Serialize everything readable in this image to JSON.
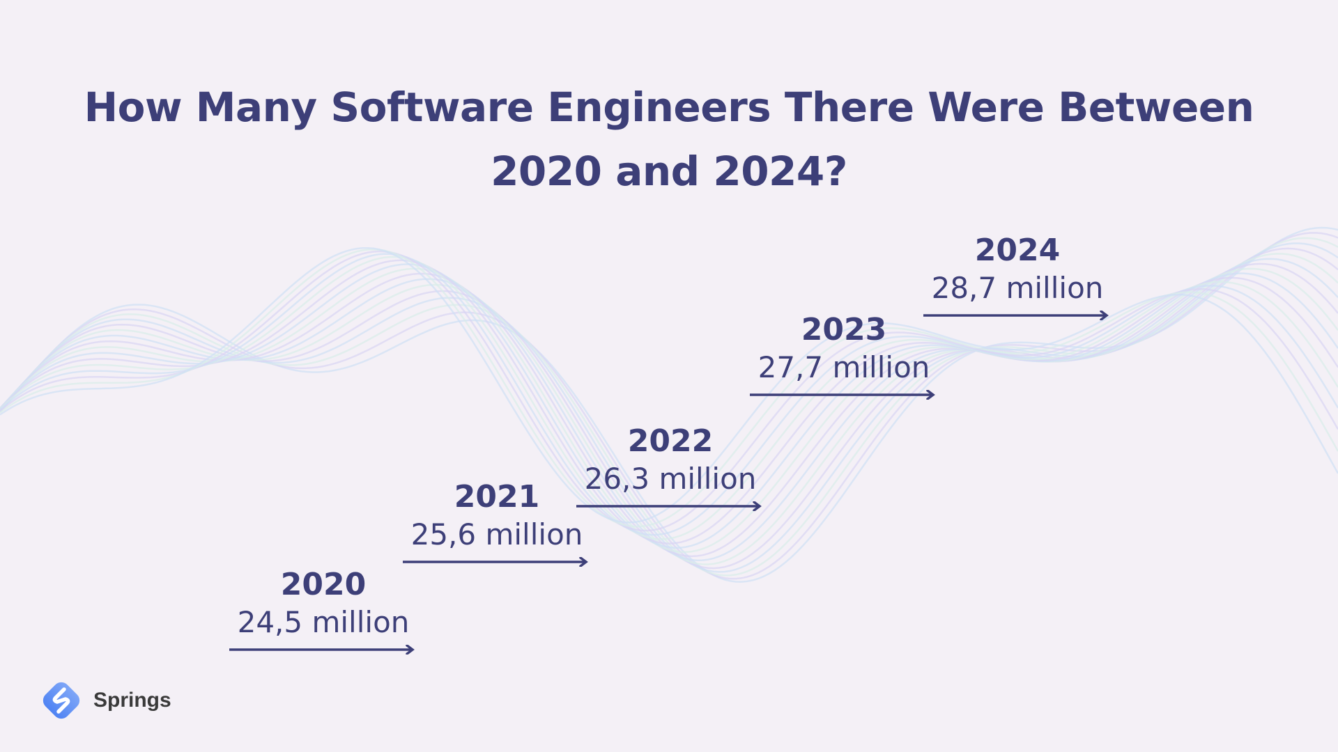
{
  "title_line1": "How Many Software Engineers There Were Between",
  "title_line2": "2020 and 2024?",
  "colors": {
    "text": "#3d3f78",
    "background": "#f4f0f6",
    "wave_left": "#cfe0f5",
    "wave_mid": "#d9d4f3",
    "wave_right": "#d8ece9",
    "logo": "#5b8ef7"
  },
  "chart_data": {
    "type": "bar",
    "title": "How Many Software Engineers There Were Between 2020 and 2024?",
    "categories": [
      "2020",
      "2021",
      "2022",
      "2023",
      "2024"
    ],
    "values": [
      24.5,
      25.6,
      26.3,
      27.7,
      28.7
    ],
    "labels": [
      "24,5 million",
      "25,6 million",
      "26,3 million",
      "27,7 million",
      "28,7 million"
    ],
    "unit": "million"
  },
  "brand": {
    "name": "Springs",
    "icon": "springs-logo-icon"
  }
}
